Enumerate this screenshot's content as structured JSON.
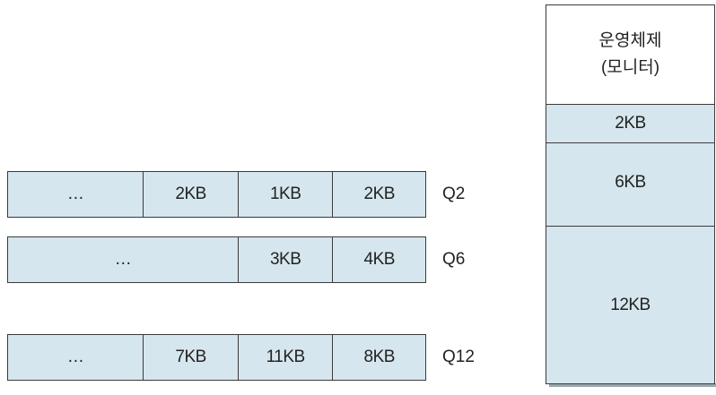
{
  "queues": [
    {
      "label": "Q2",
      "cells": [
        "…",
        "2KB",
        "1KB",
        "2KB"
      ]
    },
    {
      "label": "Q6",
      "cells": [
        "…",
        "3KB",
        "4KB"
      ]
    },
    {
      "label": "Q12",
      "cells": [
        "…",
        "7KB",
        "11KB",
        "8KB"
      ]
    }
  ],
  "memory": {
    "os_line1": "운영체제",
    "os_line2": "(모니터)",
    "blocks": [
      "2KB",
      "6KB",
      "12KB"
    ]
  },
  "colors": {
    "block_fill": "#d6e6ee",
    "border": "#3a3a3a"
  }
}
